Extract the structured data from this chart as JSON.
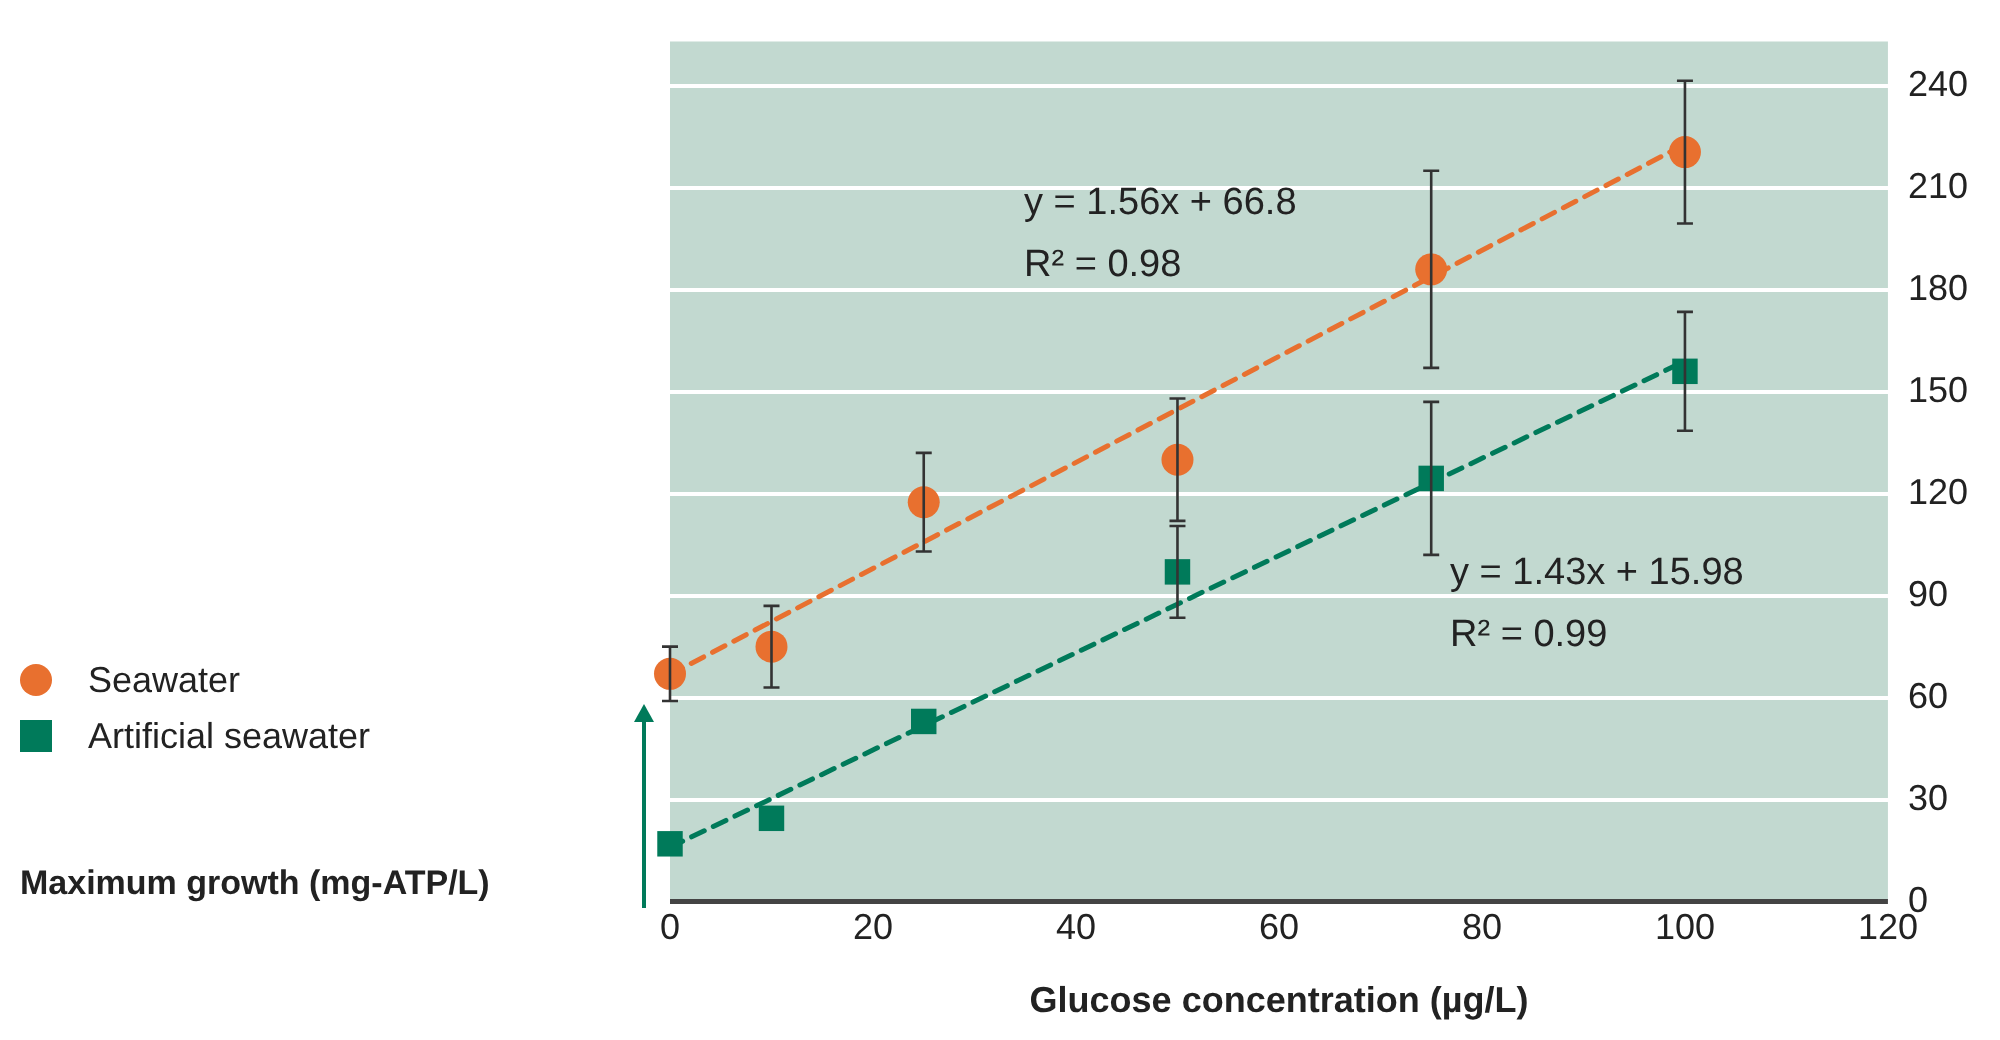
{
  "chart_data": {
    "type": "scatter",
    "xlabel": "Glucose concentration (µg/L)",
    "xlim": [
      0,
      120
    ],
    "xticks": [
      0,
      20,
      40,
      60,
      80,
      100,
      120
    ],
    "ylim": [
      0,
      253
    ],
    "yticks": [
      0,
      30,
      60,
      90,
      120,
      150,
      180,
      210,
      240
    ],
    "grid": "y",
    "legend": "left",
    "series": [
      {
        "name": "Seawater",
        "type": "scatter",
        "marker": "circle",
        "color": "#e8702f",
        "x": [
          0,
          10,
          25,
          50,
          75,
          100
        ],
        "values": [
          67,
          75,
          117.5,
          130,
          186,
          220.5
        ],
        "errors": [
          8,
          12,
          14.5,
          18,
          29,
          21
        ]
      },
      {
        "name": "Artificial seawater",
        "type": "scatter",
        "marker": "square",
        "color": "#007a5a",
        "x": [
          0,
          10,
          25,
          50,
          75,
          100
        ],
        "values": [
          17,
          24.5,
          53,
          97,
          124.5,
          156
        ],
        "errors": [
          null,
          null,
          null,
          13.5,
          22.5,
          17.5
        ]
      },
      {
        "type": "line",
        "line_style": "dashed",
        "color": "#e8702f",
        "x": [
          0,
          100
        ],
        "values": [
          66.8,
          222.8
        ]
      },
      {
        "type": "line",
        "line_style": "dashed",
        "color": "#007a5a",
        "x": [
          0,
          100
        ],
        "values": [
          16,
          159
        ]
      }
    ],
    "annotations": [
      "y = 1.56x + 66.8",
      "R² = 0.98",
      "y = 1.43x + 15.98",
      "R² = 0.99",
      "Maximum growth (mg-ATP/L)"
    ]
  }
}
